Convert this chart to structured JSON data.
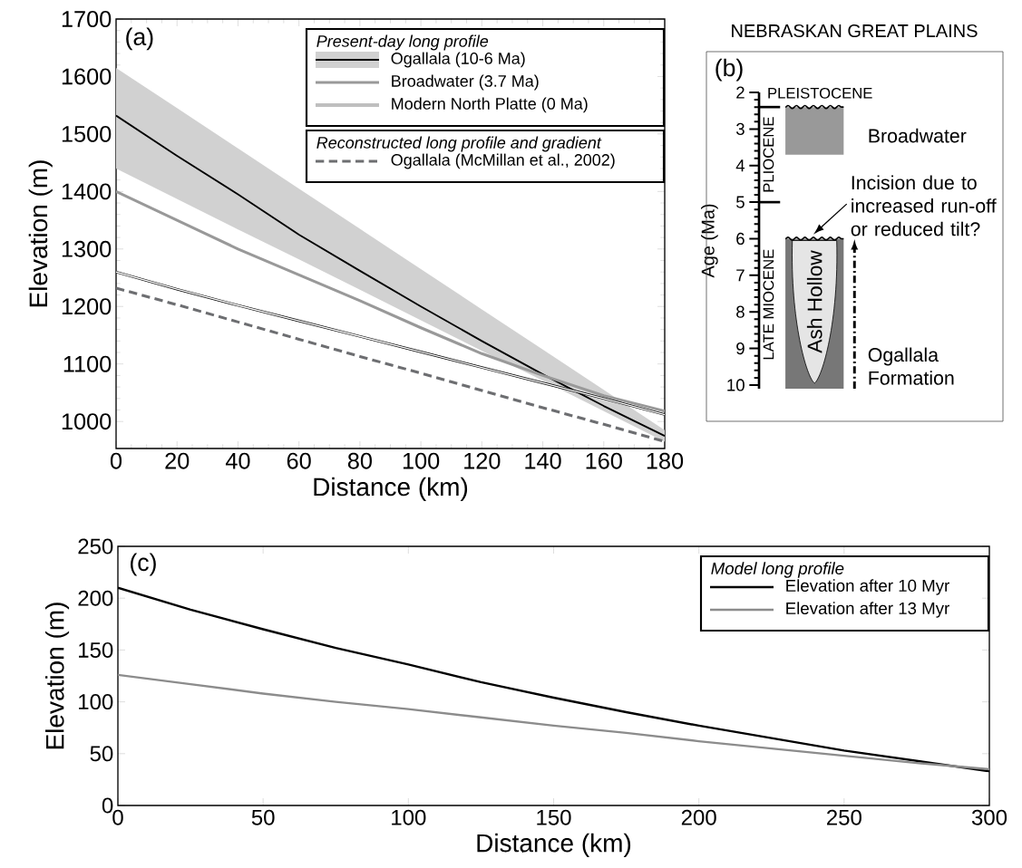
{
  "chart_data": [
    {
      "type": "line",
      "xlabel": "Distance (km)",
      "ylabel": "Elevation (m)",
      "legend": "top right",
      "legend_title": "Present-day long profile",
      "annotations": [
        "(a)",
        "Reconstructed long profile and gradient"
      ],
      "x": [
        0,
        20,
        40,
        60,
        80,
        100,
        120,
        140,
        160,
        180
      ],
      "series": [
        {
          "name": "Ogallala (10-6 Ma)",
          "color": "#000000",
          "values": [
            1532,
            1462,
            1395,
            1325,
            1262,
            1200,
            1140,
            1082,
            1027,
            975
          ],
          "lower": [
            1440,
            1387,
            1334,
            1282,
            1229,
            1176,
            1123,
            1071,
            1018,
            965
          ],
          "upper": [
            1615,
            1545,
            1475,
            1405,
            1335,
            1265,
            1195,
            1125,
            1055,
            985
          ]
        },
        {
          "name": "Broadwater (3.7 Ma)",
          "color": "#999999",
          "values": [
            1400,
            1350,
            1300,
            1255,
            1210,
            1163,
            1118,
            1080,
            1045,
            1018
          ]
        },
        {
          "name": "Modern North Platte (0 Ma)",
          "color": "#000000",
          "values": [
            1260,
            1230,
            1202,
            1175,
            1148,
            1121,
            1094,
            1067,
            1040,
            1012
          ]
        },
        {
          "name": "Ogallala (McMillan et al., 2002)",
          "color": "#6d6e71",
          "line_style": "dashed",
          "values": [
            1232,
            1203,
            1173,
            1143,
            1113,
            1084,
            1054,
            1024,
            995,
            965
          ]
        }
      ],
      "xlim": [
        0,
        180
      ],
      "ylim": [
        953,
        1700
      ],
      "xticks": [
        0,
        20,
        40,
        60,
        80,
        100,
        120,
        140,
        160,
        180
      ],
      "yticks": [
        1000,
        1100,
        1200,
        1300,
        1400,
        1500,
        1600,
        1700
      ]
    },
    {
      "type": "bar",
      "title": "NEBRASKAN GREAT PLAINS",
      "ylabel": "Age (Ma)",
      "tick_labels": "y",
      "annotations": [
        "(b)",
        "PLEISTOCENE",
        "PLIOCENE",
        "LATE MIOCENE",
        "Ash Hollow",
        "Incision due to increased run-off or reduced tilt?"
      ],
      "categories": [
        null
      ],
      "series": [
        {
          "name": "Broadwater",
          "color": "#999999",
          "values": [
            1.3
          ],
          "base": [
            2.4
          ]
        },
        {
          "name": "Ogallala Formation",
          "color": "#777777",
          "values": [
            4.1
          ],
          "base": [
            6
          ]
        }
      ],
      "ref_lines": [
        {
          "axis": "y",
          "value": 2.4
        },
        {
          "axis": "y",
          "value": 5
        }
      ],
      "ylim": [
        10.1,
        2
      ],
      "yticks": [
        2,
        3,
        4,
        5,
        6,
        7,
        8,
        9,
        10
      ]
    },
    {
      "type": "line",
      "xlabel": "Distance (km)",
      "ylabel": "Elevation (m)",
      "legend": "top right",
      "legend_title": "Model long profile",
      "annotations": [
        "(c)"
      ],
      "x": [
        0,
        25,
        50,
        75,
        100,
        125,
        150,
        175,
        200,
        225,
        250,
        275,
        300
      ],
      "series": [
        {
          "name": "Elevation after 10 Myr",
          "color": "#000000",
          "values": [
            210,
            189,
            170,
            152,
            136,
            119,
            104,
            90,
            77,
            65,
            53,
            43,
            33
          ]
        },
        {
          "name": "Elevation after 13 Myr",
          "color": "#8c8c8c",
          "values": [
            126,
            117,
            108,
            100,
            93,
            85,
            77,
            70,
            62,
            55,
            48,
            41,
            35
          ]
        }
      ],
      "xlim": [
        0,
        300
      ],
      "ylim": [
        0,
        250
      ],
      "xticks": [
        0,
        50,
        100,
        150,
        200,
        250,
        300
      ],
      "yticks": [
        0,
        50,
        100,
        150,
        200,
        250
      ]
    }
  ]
}
